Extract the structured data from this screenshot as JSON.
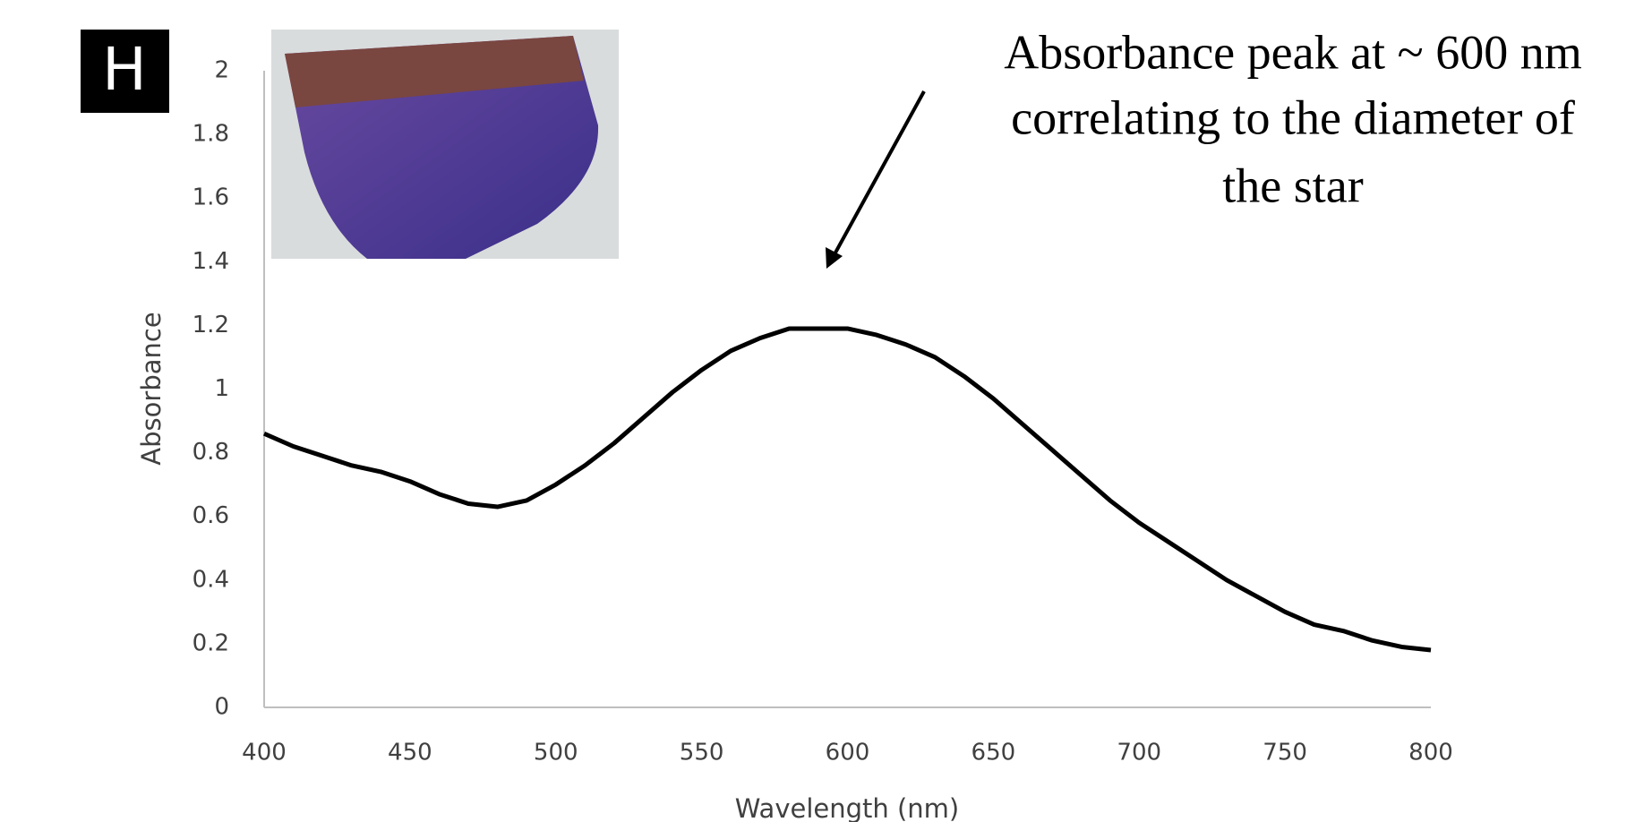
{
  "panel_label": "H",
  "chart_data": {
    "type": "line",
    "x_label": "Wavelength (nm)",
    "y_label": "Absorbance",
    "annotation": [
      "Absorbance peak at ~ 600 nm",
      "correlating to the diameter of",
      "the star"
    ],
    "x": [
      400,
      410,
      420,
      430,
      440,
      450,
      460,
      470,
      480,
      490,
      500,
      510,
      520,
      530,
      540,
      550,
      560,
      570,
      580,
      590,
      600,
      610,
      620,
      630,
      640,
      650,
      660,
      670,
      680,
      690,
      700,
      710,
      720,
      730,
      740,
      750,
      760,
      770,
      780,
      790,
      800
    ],
    "series": [
      {
        "color": "#000000",
        "values": [
          0.86,
          0.82,
          0.79,
          0.76,
          0.74,
          0.71,
          0.67,
          0.64,
          0.63,
          0.65,
          0.7,
          0.76,
          0.83,
          0.91,
          0.99,
          1.06,
          1.12,
          1.16,
          1.19,
          1.19,
          1.19,
          1.17,
          1.14,
          1.1,
          1.04,
          0.97,
          0.89,
          0.81,
          0.73,
          0.65,
          0.58,
          0.52,
          0.46,
          0.4,
          0.35,
          0.3,
          0.26,
          0.24,
          0.21,
          0.19,
          0.18
        ]
      }
    ],
    "xlim": [
      400,
      800
    ],
    "xticks": [
      400,
      450,
      500,
      550,
      600,
      650,
      700,
      750,
      800
    ],
    "ylim": [
      0,
      2
    ],
    "yticks": [
      0,
      0.2,
      0.4,
      0.6,
      0.8,
      1,
      1.2,
      1.4,
      1.6,
      1.8,
      2
    ]
  }
}
